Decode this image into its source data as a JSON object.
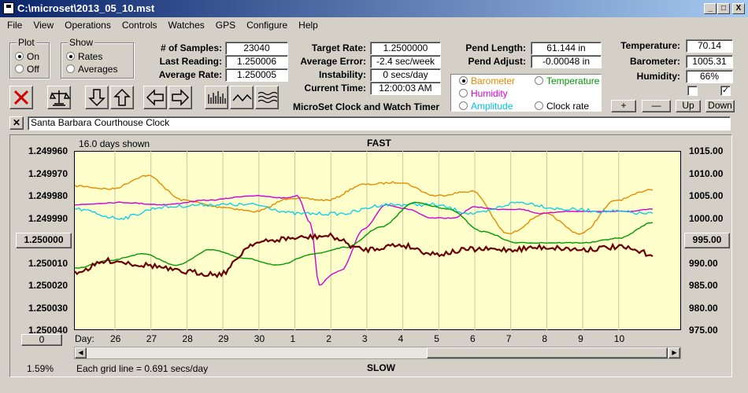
{
  "window": {
    "title": "C:\\microset\\2013_05_10.mst",
    "min": "_",
    "max": "□",
    "close": "X"
  },
  "menu": [
    "File",
    "View",
    "Operations",
    "Controls",
    "Watches",
    "GPS",
    "Configure",
    "Help"
  ],
  "plot_group": {
    "title": "Plot",
    "on": "On",
    "off": "Off",
    "selected": "On"
  },
  "show_group": {
    "title": "Show",
    "rates": "Rates",
    "averages": "Averages",
    "selected": "Rates"
  },
  "stats": {
    "samples_label": "# of Samples:",
    "samples": "23040",
    "last_label": "Last Reading:",
    "last": "1.250006",
    "avg_label": "Average Rate:",
    "avg": "1.250005",
    "target_label": "Target Rate:",
    "target": "1.2500000",
    "avgerr_label": "Average Error:",
    "avgerr": "-2.4 sec/week",
    "instab_label": "Instability:",
    "instab": "0 secs/day",
    "time_label": "Current Time:",
    "time": "12:00:03 AM",
    "pendlen_label": "Pend Length:",
    "pendlen": "61.144 in",
    "pendadj_label": "Pend Adjust:",
    "pendadj": "-0.00048 in",
    "temp_label": "Temperature:",
    "temp": "70.14",
    "baro_label": "Barometer:",
    "baro": "1005.31",
    "hum_label": "Humidity:",
    "hum": "66%"
  },
  "brand": "MicroSet Clock and Watch Timer",
  "series_selector": {
    "barometer": "Barometer",
    "temperature": "Temperature",
    "humidity": "Humidity",
    "amplitude": "Amplitude",
    "clock_rate": "Clock rate",
    "selected": "Barometer"
  },
  "adjust_buttons": {
    "plus": "+",
    "minus": "—",
    "up": "Up",
    "down": "Down"
  },
  "checkboxes": [
    {
      "checked": false
    },
    {
      "checked": true
    }
  ],
  "toolbar_icons": [
    "stop-icon",
    "balance-icon",
    "arrow-down-icon",
    "arrow-up-icon",
    "arrow-left-icon",
    "arrow-right-icon",
    "bars-chart-icon",
    "wave-icon",
    "wavy-lines-icon"
  ],
  "clock_name": "Santa Barbara Courthouse Clock",
  "chart_header": {
    "days_shown": "16.0 days shown",
    "fast": "FAST",
    "slow": "SLOW",
    "percent": "1.59%",
    "grid_note": "Each grid line = 0.691 secs/day",
    "center_left": "1.250000",
    "center_right": "995.00",
    "scroll_value": "0",
    "day_label": "Day:"
  },
  "colors": {
    "rate": "#6b0000",
    "barometer": "#e68a00",
    "temperature": "#009900",
    "humidity": "#d400d4",
    "amplitude": "#00d0e8",
    "plot_bg": "#ffffcc"
  },
  "chart_data": {
    "type": "line",
    "title": "",
    "x_ticks": [
      "26",
      "27",
      "28",
      "29",
      "30",
      "1",
      "2",
      "3",
      "4",
      "5",
      "6",
      "7",
      "8",
      "9",
      "10"
    ],
    "y_left_ticks": [
      "1.249960",
      "1.249970",
      "1.249980",
      "1.249990",
      "1.250000",
      "1.250010",
      "1.250020",
      "1.250030",
      "1.250040"
    ],
    "y_right_ticks": [
      "1015.00",
      "1010.00",
      "1005.00",
      "1000.00",
      "995.00",
      "990.00",
      "985.00",
      "980.00",
      "975.00"
    ],
    "y_left_range": [
      1.24996,
      1.25004
    ],
    "y_right_range": [
      975,
      1015
    ],
    "series": [
      {
        "key": "barometer",
        "x": [
          0,
          1,
          2,
          3,
          4,
          5,
          6,
          7,
          8,
          9,
          10,
          11,
          12,
          13,
          14,
          15,
          16
        ],
        "values": [
          1007.2,
          1006.5,
          1009.5,
          1004.0,
          1002.5,
          1001.5,
          1004.5,
          1004.0,
          1007.5,
          1008.0,
          1005.0,
          1006.0,
          996.5,
          1001.0,
          996.5,
          1004.0,
          1006.5
        ]
      },
      {
        "key": "humidity",
        "x": [
          0,
          2,
          4,
          6,
          8,
          9.5,
          10,
          10.6,
          11,
          11.6,
          12,
          13,
          14,
          15,
          16,
          17,
          18,
          19,
          20,
          21,
          22,
          23,
          24,
          25,
          26
        ],
        "values": [
          1.249984,
          1.249983,
          1.249984,
          1.249982,
          1.24998,
          1.249981,
          1.24998,
          1.249992,
          1.25002,
          1.250015,
          1.250013,
          1.249995,
          1.249984,
          1.249986,
          1.24999,
          1.24999,
          1.249985,
          1.249986,
          1.249986,
          1.249988,
          1.249987,
          1.249987,
          1.249987,
          1.249987,
          1.249986
        ]
      },
      {
        "key": "amplitude",
        "x": [
          0,
          2,
          4,
          6,
          8,
          10,
          12,
          14,
          16,
          18,
          20,
          22,
          24,
          26
        ],
        "values": [
          1.249986,
          1.24999,
          1.249985,
          1.249984,
          1.249984,
          1.249988,
          1.249988,
          1.249984,
          1.249984,
          1.249988,
          1.249983,
          1.249986,
          1.249987,
          1.249988
        ]
      },
      {
        "key": "temperature",
        "x": [
          0,
          1,
          2,
          3,
          4,
          5,
          6,
          7,
          8,
          9,
          10,
          11,
          12,
          13,
          14,
          15,
          16,
          17
        ],
        "values": [
          988.8,
          990.5,
          992.0,
          989.5,
          993.0,
          991.0,
          989.5,
          992.0,
          993.5,
          998.0,
          1003.5,
          1002.0,
          997.0,
          994.5,
          994.5,
          994.5,
          995.5,
          999.0
        ]
      },
      {
        "key": "rate",
        "x": [
          0,
          1,
          2,
          3,
          4,
          5,
          6,
          7,
          8,
          9,
          10,
          11,
          12,
          13,
          14,
          15,
          16
        ],
        "values": [
          1.250014,
          1.250009,
          1.250011,
          1.250014,
          1.250015,
          1.250001,
          1.249999,
          1.249998,
          1.250004,
          1.250002,
          1.250006,
          1.250004,
          1.250004,
          1.250003,
          1.250004,
          1.250003,
          1.250006
        ]
      }
    ]
  }
}
